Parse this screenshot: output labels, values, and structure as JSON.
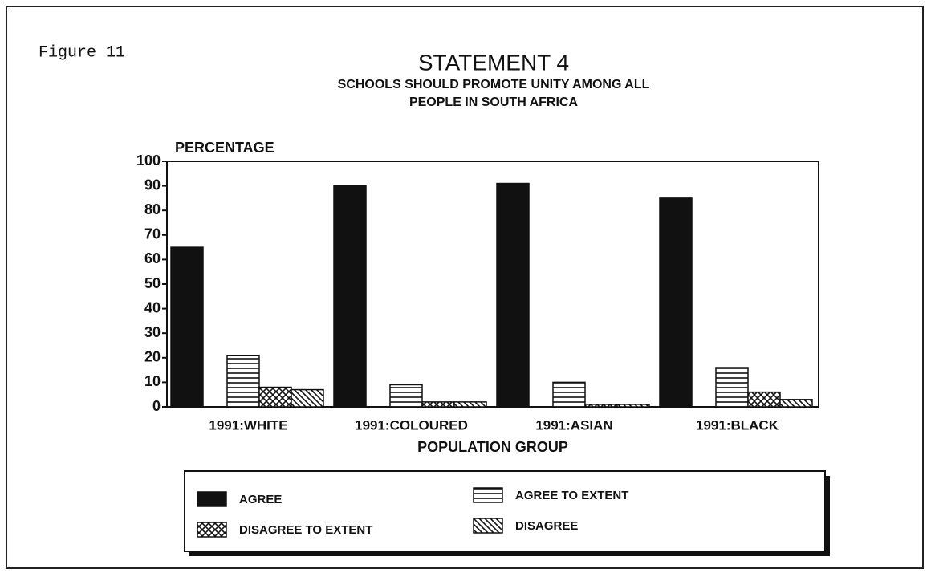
{
  "chart_data": {
    "type": "bar",
    "figure_label": "Figure 11",
    "title": "STATEMENT 4",
    "subtitle": [
      "SCHOOLS SHOULD PROMOTE UNITY AMONG ALL",
      "PEOPLE IN SOUTH AFRICA"
    ],
    "y_label": "PERCENTAGE",
    "x_label": "POPULATION GROUP",
    "categories": [
      "1991:WHITE",
      "1991:COLOURED",
      "1991:ASIAN",
      "1991:BLACK"
    ],
    "series": [
      {
        "name": "AGREE",
        "color": "#111111",
        "pattern": "solid",
        "values": [
          65,
          90,
          91,
          85
        ]
      },
      {
        "name": "AGREE TO EXTENT",
        "color": "#111111",
        "pattern": "horizontal",
        "values": [
          21,
          9,
          10,
          16
        ]
      },
      {
        "name": "DISAGREE TO EXTENT",
        "color": "#111111",
        "pattern": "crosshatch",
        "values": [
          8,
          2,
          1,
          6
        ]
      },
      {
        "name": "DISAGREE",
        "color": "#111111",
        "pattern": "diagonal",
        "values": [
          7,
          2,
          1,
          3
        ]
      }
    ],
    "ylim": [
      0,
      100
    ],
    "yticks": [
      0,
      10,
      20,
      30,
      40,
      50,
      60,
      70,
      80,
      90,
      100
    ],
    "grid": false
  }
}
